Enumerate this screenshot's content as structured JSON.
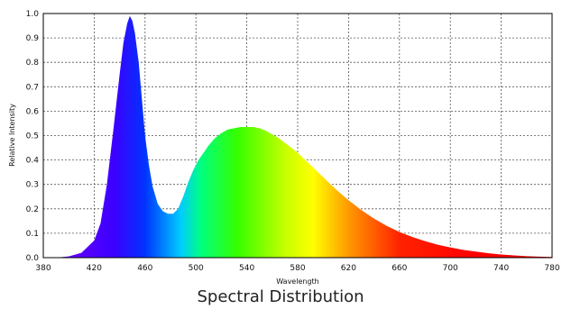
{
  "chart_data": {
    "type": "area",
    "title": "Spectral Distribution",
    "xlabel": "Wavelength",
    "ylabel": "Relative Intensity",
    "xlim": [
      380,
      780
    ],
    "ylim": [
      0,
      1.0
    ],
    "grid": true,
    "x_ticks": [
      "380",
      "420",
      "460",
      "500",
      "540",
      "580",
      "620",
      "660",
      "700",
      "740",
      "780"
    ],
    "y_ticks": [
      "0.0",
      "0.1",
      "0.2",
      "0.3",
      "0.4",
      "0.5",
      "0.6",
      "0.7",
      "0.8",
      "0.9",
      "1.0"
    ],
    "series": [
      {
        "x": [
          380,
          390,
          400,
          410,
          420,
          425,
          430,
          435,
          440,
          443,
          446,
          448,
          450,
          452,
          455,
          458,
          460,
          463,
          466,
          470,
          474,
          478,
          482,
          486,
          490,
          494,
          498,
          502,
          506,
          510,
          515,
          520,
          525,
          530,
          535,
          540,
          545,
          550,
          555,
          560,
          565,
          570,
          575,
          580,
          590,
          600,
          610,
          620,
          630,
          640,
          650,
          660,
          670,
          680,
          690,
          700,
          710,
          720,
          730,
          740,
          750,
          760,
          770,
          780
        ],
        "y": [
          0.0,
          0.0,
          0.005,
          0.02,
          0.07,
          0.14,
          0.3,
          0.52,
          0.75,
          0.88,
          0.96,
          0.99,
          0.97,
          0.92,
          0.8,
          0.62,
          0.5,
          0.38,
          0.29,
          0.22,
          0.19,
          0.18,
          0.18,
          0.2,
          0.25,
          0.31,
          0.36,
          0.4,
          0.43,
          0.46,
          0.49,
          0.51,
          0.525,
          0.53,
          0.535,
          0.535,
          0.535,
          0.53,
          0.52,
          0.505,
          0.49,
          0.47,
          0.45,
          0.43,
          0.38,
          0.33,
          0.28,
          0.235,
          0.195,
          0.16,
          0.13,
          0.105,
          0.085,
          0.068,
          0.053,
          0.042,
          0.032,
          0.025,
          0.018,
          0.013,
          0.009,
          0.006,
          0.004,
          0.003
        ]
      }
    ]
  }
}
